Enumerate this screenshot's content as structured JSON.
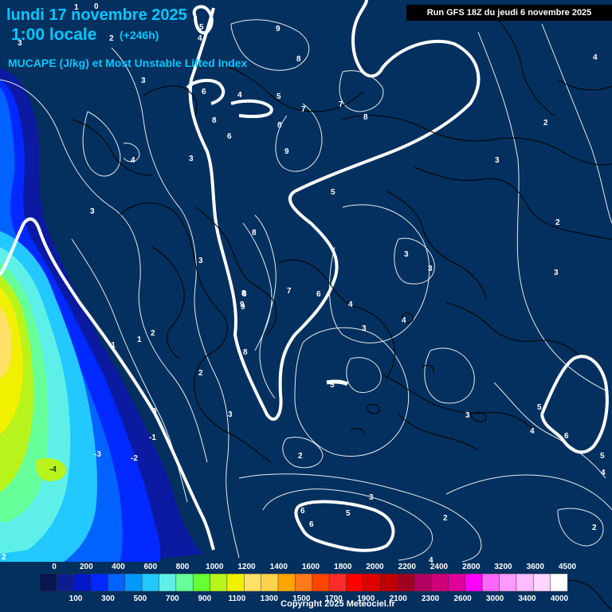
{
  "header": {
    "title_line1": "lundi 17 novembre 2025",
    "title_line2": "1:00 locale",
    "forecast_hour": "(+246h)",
    "parameter": "MUCAPE (J/kg) et Most Unstable Lifted Index",
    "run_info": "Run GFS 18Z du jeudi 6 novembre 2025"
  },
  "footer": {
    "copyright": "Copyright 2025 Meteociel.fr"
  },
  "legend": {
    "top_labels": [
      "0",
      "200",
      "400",
      "600",
      "800",
      "1000",
      "1200",
      "1400",
      "1600",
      "1800",
      "2000",
      "2200",
      "2400",
      "2800",
      "3200",
      "3600",
      "4500"
    ],
    "bottom_labels": [
      "100",
      "300",
      "500",
      "700",
      "900",
      "1100",
      "1300",
      "1500",
      "1700",
      "1900",
      "2100",
      "2300",
      "2600",
      "3000",
      "3400",
      "4000"
    ],
    "colors": [
      "#0b1650",
      "#0a1d8c",
      "#0418c8",
      "#0028ff",
      "#0062ff",
      "#0099ff",
      "#22c8ff",
      "#5ef0e8",
      "#66ff99",
      "#66ff33",
      "#b8f41c",
      "#f0f000",
      "#ffe066",
      "#ffd24d",
      "#ffa500",
      "#ff7a1a",
      "#ff4500",
      "#ff2a2a",
      "#ff0000",
      "#e00000",
      "#c00000",
      "#a00020",
      "#b00060",
      "#d0007a",
      "#e0009a",
      "#ff00ff",
      "#ff66ff",
      "#ff99ff",
      "#ffbbff",
      "#ffd6ff",
      "#ffffff"
    ]
  },
  "contour_labels": [
    {
      "t": "0"
    },
    {
      "t": "5"
    },
    {
      "t": "4"
    },
    {
      "t": "3"
    },
    {
      "t": "2"
    },
    {
      "t": "9"
    },
    {
      "t": "8"
    },
    {
      "t": "1"
    },
    {
      "t": "3"
    },
    {
      "t": "6"
    },
    {
      "t": "4"
    },
    {
      "t": "5"
    },
    {
      "t": "8"
    },
    {
      "t": "7"
    },
    {
      "t": "7"
    },
    {
      "t": "8"
    },
    {
      "t": "2"
    },
    {
      "t": "4"
    },
    {
      "t": "6"
    },
    {
      "t": "8"
    },
    {
      "t": "9"
    },
    {
      "t": "8"
    },
    {
      "t": "9"
    },
    {
      "t": "3"
    },
    {
      "t": "4"
    },
    {
      "t": "3"
    },
    {
      "t": "3"
    },
    {
      "t": "5"
    },
    {
      "t": "3"
    },
    {
      "t": "8"
    },
    {
      "t": "3"
    },
    {
      "t": "2"
    },
    {
      "t": "3"
    },
    {
      "t": "3"
    },
    {
      "t": "8"
    },
    {
      "t": "7"
    },
    {
      "t": "6"
    },
    {
      "t": "9"
    },
    {
      "t": "4"
    },
    {
      "t": "3"
    },
    {
      "t": "4"
    },
    {
      "t": "1"
    },
    {
      "t": "2"
    },
    {
      "t": "-1"
    },
    {
      "t": "8"
    },
    {
      "t": "2"
    },
    {
      "t": "3"
    },
    {
      "t": "5"
    },
    {
      "t": "0"
    },
    {
      "t": "-1"
    },
    {
      "t": "-3"
    },
    {
      "t": "-2"
    },
    {
      "t": "-4"
    },
    {
      "t": "3"
    },
    {
      "t": "5"
    },
    {
      "t": "4"
    },
    {
      "t": "6"
    },
    {
      "t": "5"
    },
    {
      "t": "4"
    },
    {
      "t": "2"
    },
    {
      "t": "3"
    },
    {
      "t": "6"
    },
    {
      "t": "6"
    },
    {
      "t": "5"
    },
    {
      "t": "2"
    },
    {
      "t": "2"
    },
    {
      "t": "4"
    },
    {
      "t": "2"
    }
  ]
}
